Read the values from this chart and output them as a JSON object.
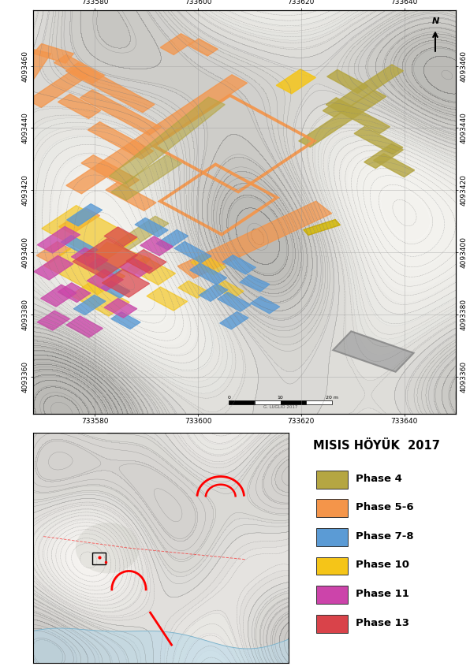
{
  "title": "MISIS HÖYÜK  2017",
  "legend_phases": [
    {
      "label": "Phase 4",
      "color": "#b5a642"
    },
    {
      "label": "Phase 5-6",
      "color": "#f4954a"
    },
    {
      "label": "Phase 7-8",
      "color": "#5b9bd5"
    },
    {
      "label": "Phase 10",
      "color": "#f5c518"
    },
    {
      "label": "Phase 11",
      "color": "#cc44aa"
    },
    {
      "label": "Phase 13",
      "color": "#d9434a"
    }
  ],
  "bg_color": "#e8e8e8",
  "map_bg": "#f0efea",
  "contour_color": "#888888",
  "xticks": [
    733580,
    733600,
    733620,
    733640
  ],
  "yticks_main": [
    4093360,
    4093380,
    4093400,
    4093420,
    4093440,
    4093460
  ],
  "scale_label": "20 m",
  "credit": "G. LUGLIO 2017",
  "white_bg": "#ffffff"
}
